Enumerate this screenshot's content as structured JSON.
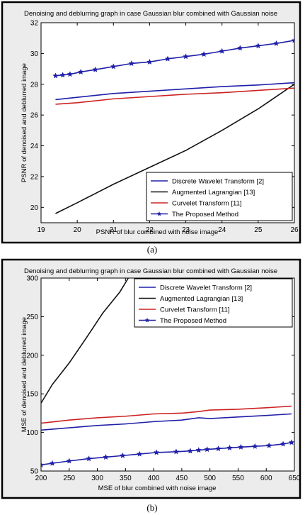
{
  "chart_data": [
    {
      "type": "line",
      "title": "Denoising and deblurring graph in case Gaussian blur combined with Gaussian noise",
      "xlabel": "PSNR of blur combined with noise image",
      "ylabel": "PSNR of denoised and deblurred image",
      "caption": "(a)",
      "xlim": [
        19,
        26
      ],
      "ylim": [
        19,
        32
      ],
      "xticks": [
        "19",
        "20",
        "21",
        "22",
        "23",
        "24",
        "25",
        "26"
      ],
      "yticks": [
        "20",
        "22",
        "24",
        "26",
        "28",
        "30",
        "32"
      ],
      "legend_position": "bottom-right",
      "grid": false,
      "series": [
        {
          "name": "Discrete Wavelet Transform [2]",
          "color": "#1f1fa8",
          "marker": "none",
          "points": [
            [
              19.4,
              27.0
            ],
            [
              20.0,
              27.15
            ],
            [
              21.0,
              27.4
            ],
            [
              22.0,
              27.55
            ],
            [
              23.0,
              27.7
            ],
            [
              24.0,
              27.85
            ],
            [
              25.0,
              27.95
            ],
            [
              26.0,
              28.1
            ]
          ]
        },
        {
          "name": "Augmented Lagrangian [13]",
          "color": "#111111",
          "marker": "none",
          "points": [
            [
              19.4,
              19.6
            ],
            [
              20.0,
              20.3
            ],
            [
              21.0,
              21.5
            ],
            [
              22.0,
              22.6
            ],
            [
              23.0,
              23.7
            ],
            [
              24.0,
              25.0
            ],
            [
              25.0,
              26.4
            ],
            [
              26.0,
              28.0
            ]
          ]
        },
        {
          "name": "Curvelet Transform [11]",
          "color": "#cc2222",
          "marker": "none",
          "points": [
            [
              19.4,
              26.7
            ],
            [
              20.0,
              26.8
            ],
            [
              21.0,
              27.05
            ],
            [
              22.0,
              27.2
            ],
            [
              23.0,
              27.35
            ],
            [
              24.0,
              27.45
            ],
            [
              25.0,
              27.6
            ],
            [
              26.0,
              27.75
            ]
          ]
        },
        {
          "name": "The Proposed Method",
          "color": "#1f1fa8",
          "marker": "star",
          "points": [
            [
              19.4,
              28.55
            ],
            [
              19.6,
              28.6
            ],
            [
              19.8,
              28.65
            ],
            [
              20.1,
              28.8
            ],
            [
              20.5,
              28.95
            ],
            [
              21.0,
              29.15
            ],
            [
              21.5,
              29.35
            ],
            [
              22.0,
              29.45
            ],
            [
              22.5,
              29.65
            ],
            [
              23.0,
              29.8
            ],
            [
              23.5,
              29.95
            ],
            [
              24.0,
              30.15
            ],
            [
              24.5,
              30.35
            ],
            [
              25.0,
              30.5
            ],
            [
              25.5,
              30.65
            ],
            [
              26.0,
              30.85
            ]
          ]
        }
      ]
    },
    {
      "type": "line",
      "title": "Denoising and deblurring graph in case Gaussian blur combined with Gaussian noise",
      "xlabel": "MSE of blur combined with noise image",
      "ylabel": "MSE of denoised and deblurred image",
      "caption": "(b)",
      "xlim": [
        200,
        650
      ],
      "ylim": [
        50,
        300
      ],
      "xticks": [
        "200",
        "250",
        "300",
        "350",
        "400",
        "450",
        "500",
        "550",
        "600",
        "650"
      ],
      "yticks": [
        "50",
        "100",
        "150",
        "200",
        "250",
        "300"
      ],
      "legend_position": "top-right",
      "grid": false,
      "series": [
        {
          "name": "Discrete Wavelet Transform [2]",
          "color": "#1f1fa8",
          "marker": "none",
          "points": [
            [
              200,
              103
            ],
            [
              250,
              106
            ],
            [
              300,
              109
            ],
            [
              350,
              111
            ],
            [
              400,
              114
            ],
            [
              450,
              116
            ],
            [
              480,
              119
            ],
            [
              500,
              118
            ],
            [
              550,
              120
            ],
            [
              600,
              122
            ],
            [
              645,
              124
            ]
          ]
        },
        {
          "name": "Augmented Lagrangian [13]",
          "color": "#111111",
          "marker": "none",
          "points": [
            [
              200,
              138
            ],
            [
              220,
              162
            ],
            [
              250,
              190
            ],
            [
              280,
              222
            ],
            [
              310,
              255
            ],
            [
              340,
              282
            ],
            [
              355,
              300
            ]
          ]
        },
        {
          "name": "Curvelet Transform [11]",
          "color": "#cc2222",
          "marker": "none",
          "points": [
            [
              200,
              112
            ],
            [
              250,
              116
            ],
            [
              300,
              119
            ],
            [
              350,
              121
            ],
            [
              400,
              124
            ],
            [
              450,
              125
            ],
            [
              480,
              127
            ],
            [
              500,
              129
            ],
            [
              550,
              130
            ],
            [
              600,
              132
            ],
            [
              645,
              134
            ]
          ]
        },
        {
          "name": "The Proposed Method",
          "color": "#1f1fa8",
          "marker": "star",
          "points": [
            [
              200,
              58
            ],
            [
              220,
              60
            ],
            [
              250,
              63
            ],
            [
              285,
              66
            ],
            [
              315,
              68
            ],
            [
              345,
              70
            ],
            [
              375,
              72
            ],
            [
              405,
              74
            ],
            [
              440,
              75
            ],
            [
              465,
              76
            ],
            [
              480,
              77
            ],
            [
              495,
              78
            ],
            [
              515,
              79
            ],
            [
              535,
              80
            ],
            [
              555,
              81
            ],
            [
              580,
              82
            ],
            [
              605,
              83
            ],
            [
              630,
              85
            ],
            [
              645,
              87
            ]
          ]
        }
      ]
    }
  ]
}
